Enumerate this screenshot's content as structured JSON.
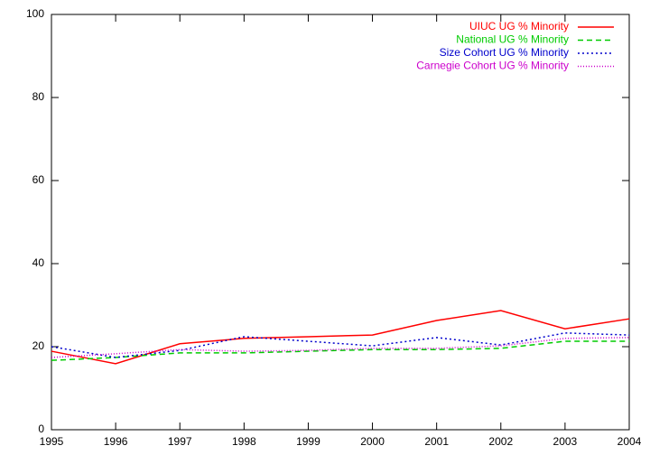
{
  "chart_data": {
    "type": "line",
    "x": [
      1995,
      1996,
      1997,
      1998,
      1999,
      2000,
      2001,
      2002,
      2003,
      2004
    ],
    "xlim": [
      1995,
      2004
    ],
    "xticks": [
      1995,
      1996,
      1997,
      1998,
      1999,
      2000,
      2001,
      2002,
      2003,
      2004
    ],
    "ylim": [
      0,
      100
    ],
    "yticks": [
      0,
      20,
      40,
      60,
      80,
      100
    ],
    "grid": false,
    "legend": "top-right",
    "series": [
      {
        "name": "UIUC UG % Minority",
        "color": "#ff0000",
        "dash": "none",
        "values": [
          18.9,
          15.9,
          20.7,
          22.0,
          22.4,
          22.8,
          26.3,
          28.7,
          24.3,
          26.7
        ]
      },
      {
        "name": "National UG % Minority",
        "color": "#00cc00",
        "dash": "6,4",
        "values": [
          16.7,
          17.4,
          18.5,
          18.5,
          18.9,
          19.3,
          19.3,
          19.6,
          21.3,
          21.3
        ]
      },
      {
        "name": "Size Cohort UG % Minority",
        "color": "#0000cc",
        "dash": "2,3",
        "values": [
          20.0,
          17.4,
          19.1,
          22.4,
          21.3,
          20.2,
          22.2,
          20.4,
          23.3,
          22.8
        ]
      },
      {
        "name": "Carnegie Cohort UG % Minority",
        "color": "#cc00cc",
        "dash": "1,2",
        "values": [
          17.4,
          18.3,
          19.3,
          18.9,
          19.1,
          19.6,
          19.6,
          20.2,
          22.0,
          22.2
        ]
      }
    ]
  }
}
